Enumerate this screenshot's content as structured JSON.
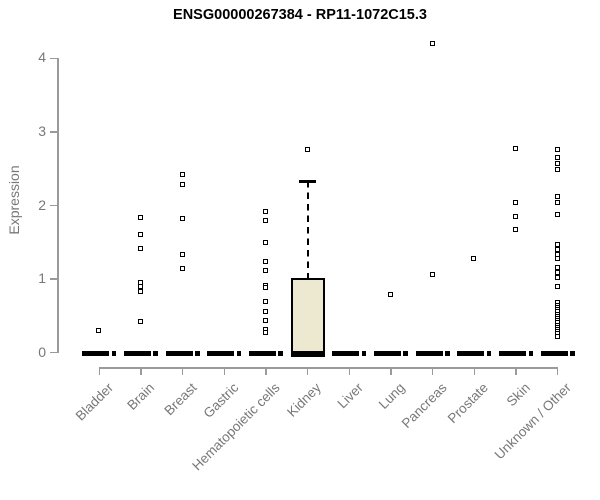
{
  "title": "ENSG00000267384 - RP11-1072C15.3",
  "chart_data": {
    "type": "boxplot",
    "title": "ENSG00000267384 - RP11-1072C15.3",
    "ylabel": "Expression",
    "xlabel": "",
    "ylim": [
      0,
      4
    ],
    "yticks": [
      0,
      1,
      2,
      3,
      4
    ],
    "grid": false,
    "legend": "none",
    "colors": {
      "box_fill": "#EDE8D0",
      "box_border": "#000000",
      "axis_line": "#9a9a9a",
      "tick_label": "#787878",
      "title": "#000000",
      "point_fill": "#ffffff"
    },
    "categories": [
      "Bladder",
      "Brain",
      "Breast",
      "Gastric",
      "Hematopoietic cells",
      "Kidney",
      "Liver",
      "Lung",
      "Pancreas",
      "Prostate",
      "Skin",
      "Unknown / Other"
    ],
    "boxes": [
      {
        "category": "Bladder",
        "q1": 0,
        "median": 0,
        "q3": 0,
        "whisker_low": 0,
        "whisker_high": 0,
        "outliers": [
          0.29
        ]
      },
      {
        "category": "Brain",
        "q1": 0,
        "median": 0,
        "q3": 0,
        "whisker_low": 0,
        "whisker_high": 0,
        "outliers": [
          1.83,
          1.6,
          1.41,
          0.95,
          0.89,
          0.83,
          0.42
        ]
      },
      {
        "category": "Breast",
        "q1": 0,
        "median": 0,
        "q3": 0,
        "whisker_low": 0,
        "whisker_high": 0,
        "outliers": [
          2.41,
          2.28,
          1.82,
          1.33,
          1.14
        ]
      },
      {
        "category": "Gastric",
        "q1": 0,
        "median": 0,
        "q3": 0,
        "whisker_low": 0,
        "whisker_high": 0,
        "outliers": []
      },
      {
        "category": "Hematopoietic cells",
        "q1": 0,
        "median": 0,
        "q3": 0,
        "whisker_low": 0,
        "whisker_high": 0,
        "outliers": [
          1.91,
          1.79,
          1.49,
          1.23,
          1.11,
          0.91,
          0.88,
          0.69,
          0.56,
          0.43,
          0.31,
          0.27
        ]
      },
      {
        "category": "Kidney",
        "q1": 0,
        "median": 0,
        "q3": 1.02,
        "whisker_low": 0,
        "whisker_high": 2.33,
        "outliers": [
          2.75
        ]
      },
      {
        "category": "Liver",
        "q1": 0,
        "median": 0,
        "q3": 0,
        "whisker_low": 0,
        "whisker_high": 0,
        "outliers": []
      },
      {
        "category": "Lung",
        "q1": 0,
        "median": 0,
        "q3": 0,
        "whisker_low": 0,
        "whisker_high": 0,
        "outliers": [
          0.78
        ]
      },
      {
        "category": "Pancreas",
        "q1": 0,
        "median": 0,
        "q3": 0,
        "whisker_low": 0,
        "whisker_high": 0,
        "outliers": [
          4.2,
          1.06
        ]
      },
      {
        "category": "Prostate",
        "q1": 0,
        "median": 0,
        "q3": 0,
        "whisker_low": 0,
        "whisker_high": 0,
        "outliers": [
          1.28
        ]
      },
      {
        "category": "Skin",
        "q1": 0,
        "median": 0,
        "q3": 0,
        "whisker_low": 0,
        "whisker_high": 0,
        "outliers": [
          2.77,
          2.03,
          1.85,
          1.67
        ]
      },
      {
        "category": "Unknown / Other",
        "q1": 0,
        "median": 0,
        "q3": 0,
        "whisker_low": 0,
        "whisker_high": 0,
        "outliers": [
          2.75,
          2.64,
          2.56,
          2.48,
          2.12,
          2.03,
          1.87,
          1.46,
          1.4,
          1.33,
          1.27,
          1.15,
          1.08,
          1.01,
          0.89,
          0.67,
          0.64,
          0.61,
          0.58,
          0.55,
          0.52,
          0.49,
          0.46,
          0.43,
          0.4,
          0.37,
          0.34,
          0.31,
          0.28,
          0.25,
          0.22
        ]
      }
    ]
  }
}
